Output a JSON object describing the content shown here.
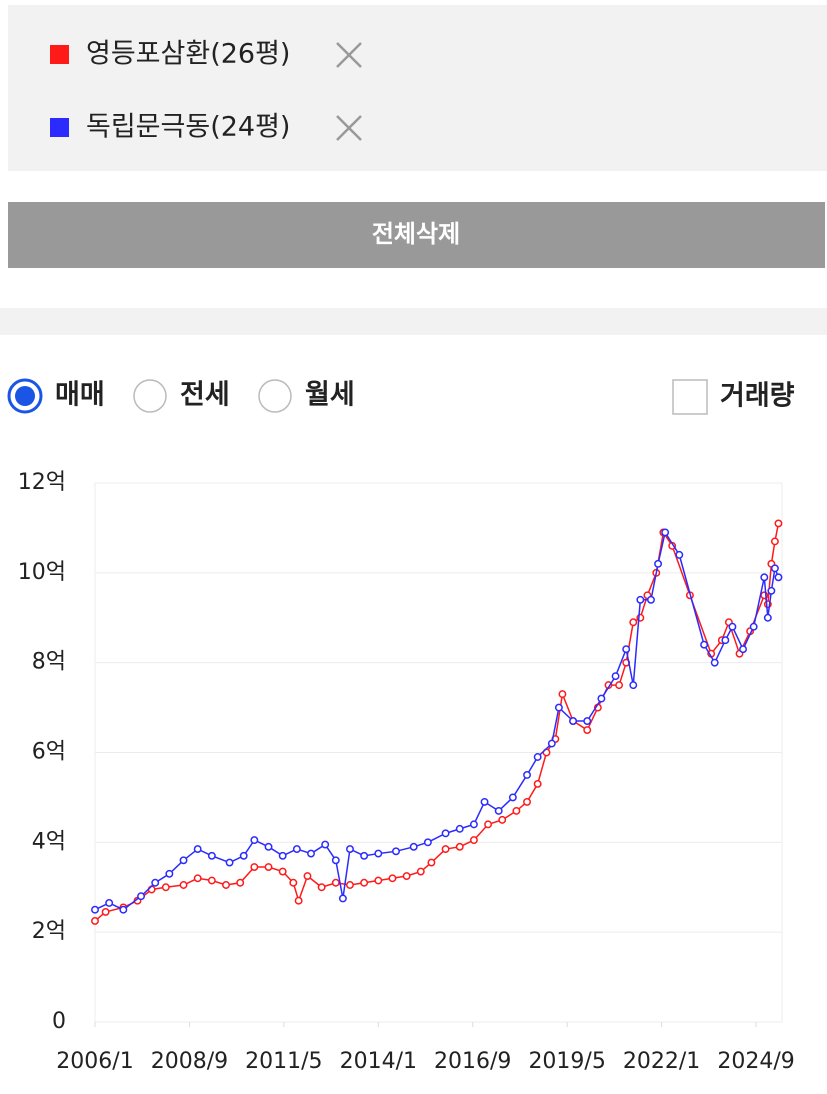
{
  "selection_panel": {
    "button": "전체삭제"
  },
  "options": {
    "radios": [
      "매매",
      "전세",
      "월세"
    ],
    "selected": 0,
    "checkbox": "거래량"
  },
  "chart_data": {
    "type": "line",
    "series": [
      {
        "name": "영등포삼환(26평)",
        "color": "#ff1a1a",
        "x": [
          2006.0,
          2006.3,
          2006.8,
          2007.2,
          2007.6,
          2008.0,
          2008.5,
          2008.9,
          2009.3,
          2009.7,
          2010.1,
          2010.5,
          2010.9,
          2011.3,
          2011.6,
          2011.75,
          2012.0,
          2012.4,
          2012.8,
          2013.2,
          2013.6,
          2014.0,
          2014.4,
          2014.8,
          2015.2,
          2015.5,
          2015.9,
          2016.3,
          2016.7,
          2017.1,
          2017.5,
          2017.9,
          2018.2,
          2018.5,
          2018.75,
          2019.0,
          2019.2,
          2019.5,
          2019.9,
          2020.2,
          2020.5,
          2020.8,
          2021.0,
          2021.2,
          2021.4,
          2021.6,
          2021.85,
          2022.05,
          2022.3,
          2022.8,
          2023.4,
          2023.7,
          2023.9,
          2024.2,
          2024.5,
          2024.9,
          2025.0,
          2025.1,
          2025.2,
          2025.3
        ],
        "values": [
          2.25,
          2.45,
          2.55,
          2.7,
          2.95,
          3.0,
          3.05,
          3.2,
          3.15,
          3.05,
          3.1,
          3.45,
          3.45,
          3.35,
          3.1,
          2.7,
          3.25,
          3.0,
          3.1,
          3.05,
          3.1,
          3.15,
          3.2,
          3.25,
          3.35,
          3.55,
          3.85,
          3.9,
          4.05,
          4.4,
          4.5,
          4.7,
          4.9,
          5.3,
          6.0,
          6.3,
          7.3,
          6.7,
          6.5,
          7.0,
          7.5,
          7.5,
          8.0,
          8.9,
          9.0,
          9.5,
          10.0,
          10.9,
          10.6,
          9.5,
          8.2,
          8.5,
          8.9,
          8.2,
          8.7,
          9.5,
          9.3,
          10.2,
          10.7,
          11.1
        ]
      },
      {
        "name": "독립문극동(24평)",
        "color": "#2b2bff",
        "x": [
          2006.0,
          2006.4,
          2006.8,
          2007.3,
          2007.7,
          2008.1,
          2008.5,
          2008.9,
          2009.3,
          2009.8,
          2010.2,
          2010.5,
          2010.9,
          2011.3,
          2011.7,
          2012.1,
          2012.5,
          2012.8,
          2013.0,
          2013.2,
          2013.6,
          2014.0,
          2014.5,
          2015.0,
          2015.4,
          2015.9,
          2016.3,
          2016.7,
          2017.0,
          2017.4,
          2017.8,
          2018.2,
          2018.5,
          2018.9,
          2019.1,
          2019.5,
          2019.9,
          2020.3,
          2020.7,
          2021.0,
          2021.2,
          2021.4,
          2021.7,
          2021.9,
          2022.1,
          2022.5,
          2023.2,
          2023.5,
          2023.8,
          2024.0,
          2024.3,
          2024.6,
          2024.9,
          2025.0,
          2025.1,
          2025.2,
          2025.3
        ],
        "values": [
          2.5,
          2.65,
          2.5,
          2.8,
          3.1,
          3.3,
          3.6,
          3.85,
          3.7,
          3.55,
          3.7,
          4.05,
          3.9,
          3.7,
          3.85,
          3.75,
          3.95,
          3.6,
          2.75,
          3.85,
          3.7,
          3.75,
          3.8,
          3.9,
          4.0,
          4.2,
          4.3,
          4.4,
          4.9,
          4.7,
          5.0,
          5.5,
          5.9,
          6.2,
          7.0,
          6.7,
          6.7,
          7.2,
          7.7,
          8.3,
          7.5,
          9.4,
          9.4,
          10.2,
          10.9,
          10.4,
          8.4,
          8.0,
          8.5,
          8.8,
          8.3,
          8.8,
          9.9,
          9.0,
          9.6,
          10.1,
          9.9
        ]
      }
    ],
    "xlim": [
      2006.0,
      2025.4
    ],
    "xticks": [
      {
        "value": 2006.0,
        "label": "2006/1"
      },
      {
        "value": 2008.667,
        "label": "2008/9"
      },
      {
        "value": 2011.333,
        "label": "2011/5"
      },
      {
        "value": 2014.0,
        "label": "2014/1"
      },
      {
        "value": 2016.667,
        "label": "2016/9"
      },
      {
        "value": 2019.333,
        "label": "2019/5"
      },
      {
        "value": 2022.0,
        "label": "2022/1"
      },
      {
        "value": 2024.667,
        "label": "2024/9"
      }
    ],
    "ylim": [
      0,
      12
    ],
    "yticks": [
      0,
      {
        "value": 2,
        "label": "2억"
      },
      {
        "value": 4,
        "label": "4억"
      },
      {
        "value": 6,
        "label": "6억"
      },
      {
        "value": 8,
        "label": "8억"
      },
      {
        "value": 10,
        "label": "10억"
      },
      {
        "value": 12,
        "label": "12억"
      }
    ],
    "grid": true
  }
}
